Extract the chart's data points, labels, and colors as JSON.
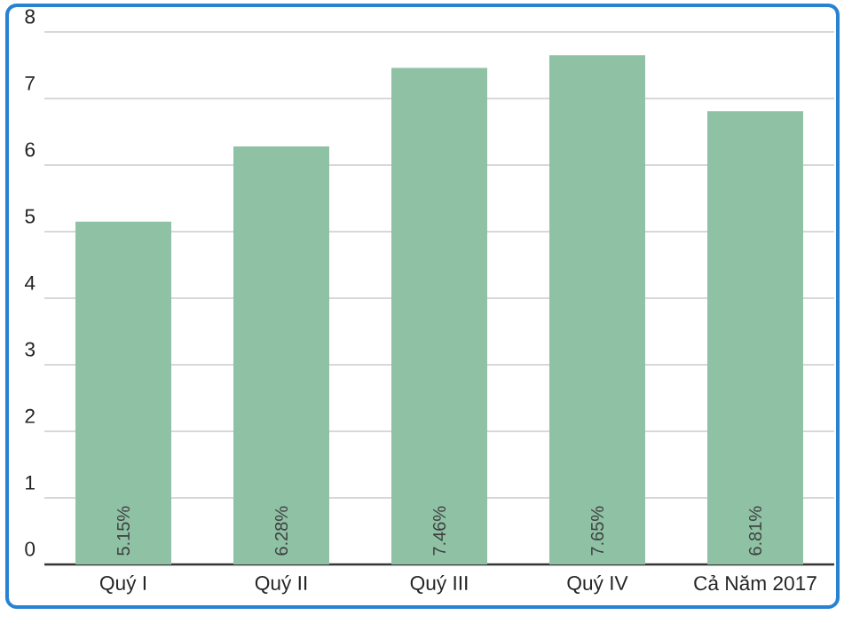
{
  "chart_data": {
    "type": "bar",
    "categories": [
      "Quý I",
      "Quý II",
      "Quý III",
      "Quý IV",
      "Cả Năm 2017"
    ],
    "values": [
      5.15,
      6.28,
      7.46,
      7.65,
      6.81
    ],
    "value_labels": [
      "5.15%",
      "6.28%",
      "7.46%",
      "7.65%",
      "6.81%"
    ],
    "color": "#8fc1a5",
    "ylim": [
      0,
      8
    ],
    "yticks": [
      0,
      1,
      2,
      3,
      4,
      5,
      6,
      7,
      8
    ],
    "grid": "y"
  }
}
